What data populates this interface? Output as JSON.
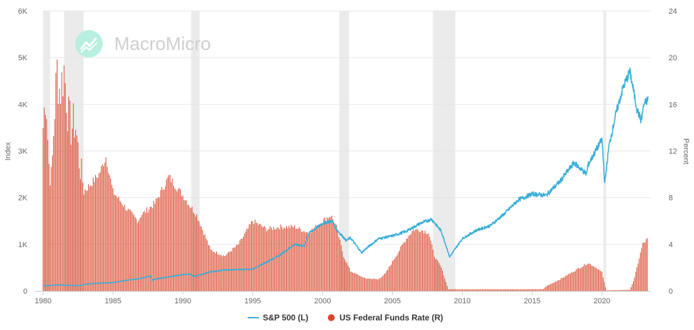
{
  "brand": {
    "name": "MacroMicro",
    "logo_color": "#9ee8d6"
  },
  "chart_data": {
    "type": "bar+line",
    "title": "",
    "xlabel": "",
    "ylabel_left": "Index",
    "ylabel_right": "Percent",
    "x_range": [
      1980.0,
      2023.5
    ],
    "ylim_left": [
      0,
      6000
    ],
    "ylim_right": [
      0,
      24
    ],
    "x_ticks": [
      "1980",
      "1985",
      "1990",
      "1995",
      "2000",
      "2005",
      "2010",
      "2015",
      "2020"
    ],
    "y_ticks_left": [
      "0",
      "1K",
      "2K",
      "3K",
      "4K",
      "5K",
      "6K"
    ],
    "y_ticks_right": [
      "0",
      "4",
      "8",
      "12",
      "16",
      "20",
      "24"
    ],
    "grid": "horizontal",
    "legend_position": "bottom-center",
    "recession_bands": [
      [
        1980.0,
        1980.5
      ],
      [
        1981.5,
        1982.9
      ],
      [
        1990.6,
        1991.2
      ],
      [
        2001.2,
        2001.9
      ],
      [
        2007.9,
        2009.5
      ],
      [
        2020.1,
        2020.3
      ]
    ],
    "recession_color": "#ebebeb",
    "series": [
      {
        "name": "S&P 500 (L)",
        "type": "line",
        "axis": "left",
        "color": "#3aaed8",
        "points": [
          [
            1980.0,
            107
          ],
          [
            1981.0,
            130
          ],
          [
            1982.0,
            120
          ],
          [
            1982.6,
            110
          ],
          [
            1983.0,
            145
          ],
          [
            1984.0,
            165
          ],
          [
            1985.0,
            180
          ],
          [
            1986.0,
            230
          ],
          [
            1987.0,
            270
          ],
          [
            1987.7,
            320
          ],
          [
            1987.8,
            225
          ],
          [
            1988.0,
            255
          ],
          [
            1989.0,
            300
          ],
          [
            1989.9,
            350
          ],
          [
            1990.5,
            360
          ],
          [
            1990.8,
            310
          ],
          [
            1991.0,
            330
          ],
          [
            1992.0,
            410
          ],
          [
            1993.0,
            450
          ],
          [
            1994.0,
            460
          ],
          [
            1995.0,
            470
          ],
          [
            1996.0,
            620
          ],
          [
            1997.0,
            780
          ],
          [
            1998.0,
            1000
          ],
          [
            1998.7,
            960
          ],
          [
            1999.0,
            1230
          ],
          [
            2000.0,
            1450
          ],
          [
            2000.7,
            1500
          ],
          [
            2001.0,
            1320
          ],
          [
            2001.7,
            1080
          ],
          [
            2002.0,
            1140
          ],
          [
            2002.8,
            820
          ],
          [
            2003.0,
            880
          ],
          [
            2004.0,
            1120
          ],
          [
            2005.0,
            1180
          ],
          [
            2006.0,
            1280
          ],
          [
            2007.0,
            1450
          ],
          [
            2007.8,
            1540
          ],
          [
            2008.5,
            1280
          ],
          [
            2009.1,
            730
          ],
          [
            2010.0,
            1120
          ],
          [
            2011.0,
            1300
          ],
          [
            2012.0,
            1400
          ],
          [
            2013.0,
            1650
          ],
          [
            2014.0,
            1950
          ],
          [
            2015.0,
            2080
          ],
          [
            2016.0,
            2050
          ],
          [
            2017.0,
            2350
          ],
          [
            2018.0,
            2750
          ],
          [
            2018.9,
            2500
          ],
          [
            2019.0,
            2700
          ],
          [
            2020.0,
            3250
          ],
          [
            2020.2,
            2300
          ],
          [
            2020.5,
            3100
          ],
          [
            2021.0,
            3800
          ],
          [
            2021.5,
            4350
          ],
          [
            2022.0,
            4700
          ],
          [
            2022.5,
            3900
          ],
          [
            2022.8,
            3650
          ],
          [
            2023.0,
            4000
          ],
          [
            2023.3,
            4100
          ]
        ]
      },
      {
        "name": "US Federal Funds Rate (R)",
        "type": "bar",
        "axis": "right",
        "color": "#d9472b",
        "step_years": 0.08333,
        "points": [
          [
            1980.0,
            14
          ],
          [
            1980.2,
            17.5
          ],
          [
            1980.4,
            11
          ],
          [
            1980.6,
            9.5
          ],
          [
            1980.8,
            15
          ],
          [
            1981.0,
            19
          ],
          [
            1981.2,
            17
          ],
          [
            1981.5,
            19
          ],
          [
            1981.8,
            15
          ],
          [
            1982.0,
            14
          ],
          [
            1982.3,
            14.5
          ],
          [
            1982.6,
            11
          ],
          [
            1982.9,
            9
          ],
          [
            1983.0,
            8.6
          ],
          [
            1984.0,
            10
          ],
          [
            1984.5,
            11.5
          ],
          [
            1985.0,
            8.5
          ],
          [
            1986.0,
            7
          ],
          [
            1986.8,
            6
          ],
          [
            1987.0,
            6.5
          ],
          [
            1988.0,
            7.5
          ],
          [
            1989.0,
            9.8
          ],
          [
            1990.0,
            8.2
          ],
          [
            1991.0,
            6.5
          ],
          [
            1992.0,
            3.5
          ],
          [
            1993.0,
            3
          ],
          [
            1994.0,
            4
          ],
          [
            1995.0,
            6
          ],
          [
            1996.0,
            5.3
          ],
          [
            1997.0,
            5.5
          ],
          [
            1998.0,
            5.5
          ],
          [
            1999.0,
            5
          ],
          [
            2000.0,
            6
          ],
          [
            2000.6,
            6.5
          ],
          [
            2001.0,
            5.5
          ],
          [
            2001.5,
            3
          ],
          [
            2002.0,
            1.7
          ],
          [
            2003.0,
            1.1
          ],
          [
            2004.0,
            1
          ],
          [
            2004.5,
            1.5
          ],
          [
            2005.0,
            2.5
          ],
          [
            2006.0,
            4.5
          ],
          [
            2006.5,
            5.25
          ],
          [
            2007.0,
            5.25
          ],
          [
            2007.6,
            5
          ],
          [
            2008.0,
            3
          ],
          [
            2008.5,
            2
          ],
          [
            2009.0,
            0.15
          ],
          [
            2015.8,
            0.15
          ],
          [
            2016.0,
            0.4
          ],
          [
            2017.0,
            1
          ],
          [
            2018.0,
            1.7
          ],
          [
            2019.0,
            2.4
          ],
          [
            2019.6,
            2
          ],
          [
            2020.0,
            1.6
          ],
          [
            2020.3,
            0.05
          ],
          [
            2022.0,
            0.1
          ],
          [
            2022.3,
            1
          ],
          [
            2022.6,
            2.5
          ],
          [
            2022.9,
            4
          ],
          [
            2023.3,
            4.5
          ]
        ]
      }
    ]
  }
}
